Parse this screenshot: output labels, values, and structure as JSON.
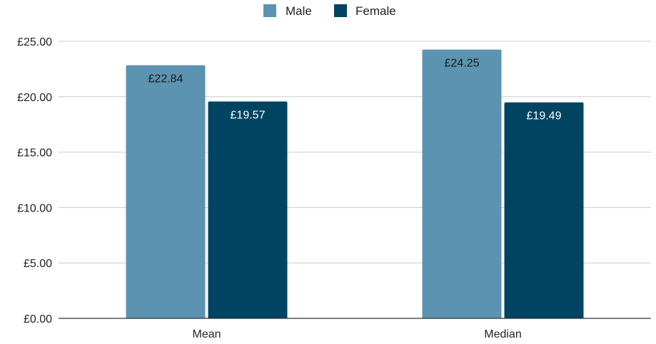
{
  "chart_data": {
    "type": "bar",
    "categories": [
      "Mean",
      "Median"
    ],
    "series": [
      {
        "name": "Male",
        "color": "#5b93b0",
        "values": [
          22.84,
          24.25
        ],
        "labels": [
          "£22.84",
          "£24.25"
        ],
        "label_color": "#1a1a1a"
      },
      {
        "name": "Female",
        "color": "#004461",
        "values": [
          19.57,
          19.49
        ],
        "labels": [
          "£19.57",
          "£19.49"
        ],
        "label_color": "#ffffff"
      }
    ],
    "title": "",
    "xlabel": "",
    "ylabel": "",
    "ylim": [
      0,
      25
    ],
    "yticks": [
      {
        "value": 0,
        "label": "£0.00"
      },
      {
        "value": 5,
        "label": "£5.00"
      },
      {
        "value": 10,
        "label": "£10.00"
      },
      {
        "value": 15,
        "label": "£15.00"
      },
      {
        "value": 20,
        "label": "£20.00"
      },
      {
        "value": 25,
        "label": "£25.00"
      }
    ],
    "grid": true,
    "legend_position": "top-center",
    "gridline_color": "#cccccc",
    "axis_color": "#333333"
  }
}
